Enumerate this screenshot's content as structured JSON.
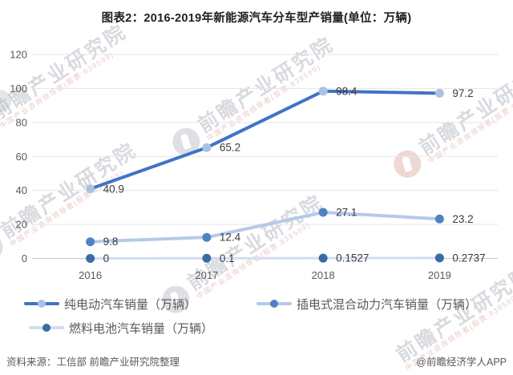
{
  "title": "图表2：2016-2019年新能源汽车分车型产销量(单位：万辆)",
  "chart_data": {
    "type": "line",
    "categories": [
      "2016",
      "2017",
      "2018",
      "2019"
    ],
    "series": [
      {
        "name": "纯电动汽车销量（万辆）",
        "values": [
          40.9,
          65.2,
          98.4,
          97.2
        ],
        "labels": [
          "40.9",
          "65.2",
          "98.4",
          "97.2"
        ],
        "line_color": "#4173C6",
        "marker_color": "#A9C2E4",
        "line_width": 4
      },
      {
        "name": "插电式混合动力汽车销量（万辆）",
        "values": [
          9.8,
          12.4,
          27.1,
          23.2
        ],
        "labels": [
          "9.8",
          "12.4",
          "27.1",
          "23.2"
        ],
        "line_color": "#B5CAE9",
        "marker_color": "#4F83C4",
        "line_width": 4
      },
      {
        "name": "燃料电池汽车销量（万辆）",
        "values": [
          0,
          0.1,
          0.1527,
          0.2737
        ],
        "labels": [
          "0",
          "0.1",
          "0.1527",
          "0.2737"
        ],
        "line_color": "#D2DDF1",
        "marker_color": "#3A6CA4",
        "line_width": 3
      }
    ],
    "ylim": [
      0,
      120
    ],
    "yticks": [
      0,
      20,
      40,
      60,
      80,
      100,
      120
    ],
    "xlabel": "",
    "ylabel": "",
    "grid": true,
    "legend_position": "bottom",
    "axis_color": "#c5c7ca",
    "grid_color": "#e4e5e8"
  },
  "footer": {
    "source": "资料来源：工信部 前瞻产业研究院整理",
    "copyright": "@前瞻经济学人APP"
  },
  "watermark": {
    "brand": "前瞻产业研究院",
    "tagline": "中国产业咨询领导者(股票:839599)"
  }
}
